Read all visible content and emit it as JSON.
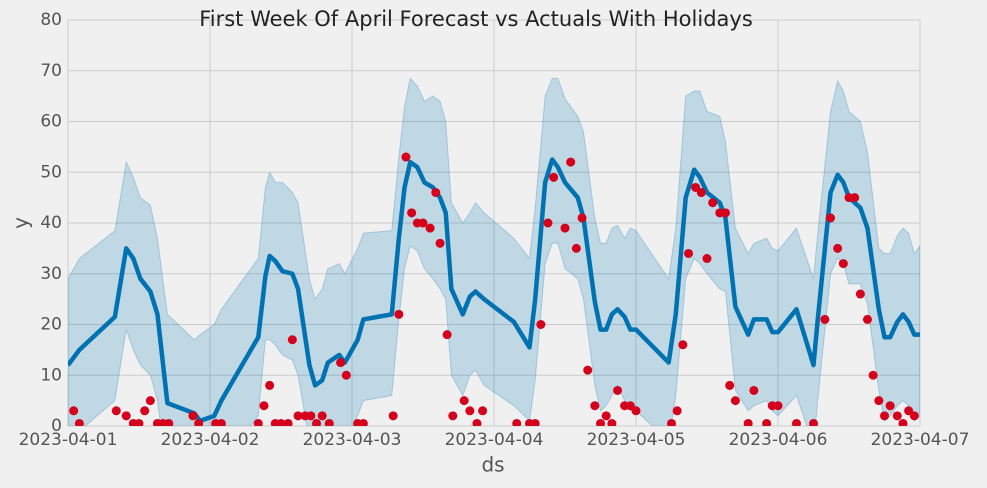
{
  "chart_data": {
    "type": "line",
    "title": "First Week Of April Forecast vs Actuals With Holidays",
    "x_label": "ds",
    "y_label": "y",
    "xlim": [
      0,
      6
    ],
    "xticks": [
      {
        "value": 0,
        "label": "2023-04-01"
      },
      {
        "value": 1,
        "label": "2023-04-02"
      },
      {
        "value": 2,
        "label": "2023-04-03"
      },
      {
        "value": 3,
        "label": "2023-04-04"
      },
      {
        "value": 4,
        "label": "2023-04-05"
      },
      {
        "value": 5,
        "label": "2023-04-06"
      },
      {
        "value": 6,
        "label": "2023-04-07"
      }
    ],
    "ylim": [
      0,
      80
    ],
    "yticks": [
      0,
      10,
      20,
      30,
      40,
      50,
      60,
      70,
      80
    ],
    "grid": true,
    "series": [
      {
        "type": "line",
        "color": "#0072b2",
        "band_color": "#0072b2",
        "x": [
          0,
          0.08,
          0.33,
          0.41,
          0.46,
          0.51,
          0.58,
          0.63,
          0.7,
          0.89,
          0.93,
          1.03,
          1.08,
          1.34,
          1.39,
          1.42,
          1.46,
          1.51,
          1.58,
          1.62,
          1.7,
          1.74,
          1.79,
          1.83,
          1.91,
          1.95,
          2.04,
          2.08,
          2.28,
          2.33,
          2.37,
          2.41,
          2.46,
          2.51,
          2.57,
          2.62,
          2.66,
          2.7,
          2.78,
          2.83,
          2.87,
          2.93,
          3.14,
          3.25,
          3.29,
          3.36,
          3.41,
          3.45,
          3.5,
          3.59,
          3.63,
          3.71,
          3.75,
          3.79,
          3.83,
          3.87,
          3.92,
          3.96,
          4.0,
          4.23,
          4.28,
          4.35,
          4.41,
          4.45,
          4.5,
          4.59,
          4.63,
          4.7,
          4.79,
          4.83,
          4.92,
          4.96,
          5.0,
          5.13,
          5.25,
          5.28,
          5.37,
          5.42,
          5.46,
          5.5,
          5.58,
          5.63,
          5.71,
          5.75,
          5.79,
          5.84,
          5.88,
          5.92,
          5.96,
          6.0
        ],
        "values": [
          12,
          15,
          21.5,
          35,
          33,
          29,
          26.5,
          22,
          4.5,
          2.5,
          1,
          2,
          5,
          17.5,
          29.5,
          33.5,
          32.5,
          30.5,
          30,
          27,
          12,
          8,
          9,
          12.5,
          14,
          12.5,
          17,
          21,
          22,
          37,
          47,
          52,
          51,
          48,
          47,
          45,
          42,
          27,
          22,
          25.5,
          26.5,
          25,
          20.5,
          15.5,
          25,
          48,
          52.5,
          51,
          48,
          45,
          41,
          24.5,
          19,
          19,
          22,
          23,
          21.5,
          19,
          19,
          12.5,
          22,
          45,
          50.5,
          49,
          46,
          44,
          41,
          23.5,
          18,
          21,
          21,
          18.5,
          18.5,
          23,
          12,
          21,
          46,
          49.5,
          48,
          45,
          43,
          39,
          23,
          17.5,
          17.5,
          20.5,
          22,
          20.5,
          18,
          18
        ],
        "upper": [
          29,
          33,
          38.5,
          52,
          49,
          45,
          43.5,
          37,
          22,
          17,
          18,
          20,
          23,
          33,
          47,
          50,
          48,
          48,
          46,
          44,
          29,
          25,
          27,
          31,
          32,
          30,
          35,
          38,
          38.5,
          53,
          63,
          68.5,
          67,
          64,
          65,
          64,
          60,
          44,
          40,
          42,
          44,
          42,
          37,
          33,
          43,
          65,
          68.5,
          68.5,
          64.5,
          61,
          58,
          41,
          36,
          36,
          39,
          39.5,
          37,
          39,
          38.5,
          29,
          39,
          65,
          66,
          66,
          62,
          61,
          56,
          39,
          34,
          36,
          37,
          35,
          34.5,
          39,
          29,
          38,
          62,
          68,
          66,
          62,
          60,
          54,
          35,
          34,
          34,
          37.5,
          39,
          38,
          34,
          35.5
        ],
        "lower": [
          -4,
          -1,
          5,
          19,
          15,
          12,
          10,
          5,
          -10,
          -13,
          -14,
          -11,
          -8,
          2,
          17,
          17,
          16,
          14,
          13,
          10,
          -3,
          -7,
          -6,
          -3,
          -1,
          -3,
          2,
          5,
          6,
          21,
          31,
          35.5,
          34.5,
          31,
          29,
          27,
          25,
          10,
          6,
          10,
          11,
          8,
          4,
          1,
          9,
          32,
          36,
          36,
          31,
          29,
          25,
          8,
          3,
          4,
          6,
          8,
          5,
          3,
          3,
          -3,
          6,
          29,
          33,
          32,
          30,
          27,
          26.5,
          7,
          3,
          4,
          5,
          3,
          2,
          6,
          -4,
          5,
          30,
          33,
          32,
          28,
          28,
          24,
          7,
          1,
          2,
          4,
          5,
          4,
          1,
          2
        ]
      },
      {
        "type": "scatter",
        "color": "#d5001c",
        "x": [
          0.04,
          0.08,
          0.34,
          0.41,
          0.46,
          0.5,
          0.54,
          0.58,
          0.63,
          0.67,
          0.71,
          0.88,
          0.92,
          1.04,
          1.08,
          1.34,
          1.38,
          1.42,
          1.46,
          1.5,
          1.55,
          1.58,
          1.62,
          1.67,
          1.71,
          1.75,
          1.79,
          1.84,
          1.92,
          1.96,
          2.04,
          2.08,
          2.29,
          2.33,
          2.38,
          2.42,
          2.46,
          2.5,
          2.55,
          2.59,
          2.62,
          2.67,
          2.71,
          2.79,
          2.83,
          2.88,
          2.92,
          3.16,
          3.25,
          3.29,
          3.33,
          3.38,
          3.42,
          3.5,
          3.54,
          3.58,
          3.62,
          3.66,
          3.71,
          3.75,
          3.79,
          3.83,
          3.87,
          3.92,
          3.96,
          4.0,
          4.25,
          4.29,
          4.33,
          4.37,
          4.42,
          4.46,
          4.5,
          4.54,
          4.59,
          4.63,
          4.66,
          4.7,
          4.79,
          4.83,
          4.92,
          4.96,
          5.0,
          5.13,
          5.25,
          5.33,
          5.37,
          5.42,
          5.46,
          5.5,
          5.54,
          5.58,
          5.63,
          5.67,
          5.71,
          5.75,
          5.79,
          5.84,
          5.88,
          5.92,
          5.96
        ],
        "values": [
          3,
          0.5,
          3,
          2,
          0.5,
          0.5,
          3,
          5,
          0.5,
          0.5,
          0.5,
          2,
          0.5,
          0.5,
          0.5,
          0.5,
          4,
          8,
          0.5,
          0.5,
          0.5,
          17,
          2,
          2,
          2,
          0.5,
          2,
          0.5,
          12.5,
          10,
          0.5,
          0.5,
          2,
          22,
          53,
          42,
          40,
          40,
          39,
          46,
          36,
          18,
          2,
          5,
          3,
          0.5,
          3,
          0.5,
          0.5,
          0.5,
          20,
          40,
          49,
          39,
          52,
          35,
          41,
          11,
          4,
          0.5,
          2,
          0.5,
          7,
          4,
          4,
          3,
          0.5,
          3,
          16,
          34,
          47,
          46,
          33,
          44,
          42,
          42,
          8,
          5,
          0.5,
          7,
          0.5,
          4,
          4,
          0.5,
          0.5,
          21,
          41,
          35,
          32,
          45,
          45,
          26,
          21,
          10,
          5,
          2,
          4,
          2,
          0.5,
          3,
          2
        ]
      }
    ]
  }
}
